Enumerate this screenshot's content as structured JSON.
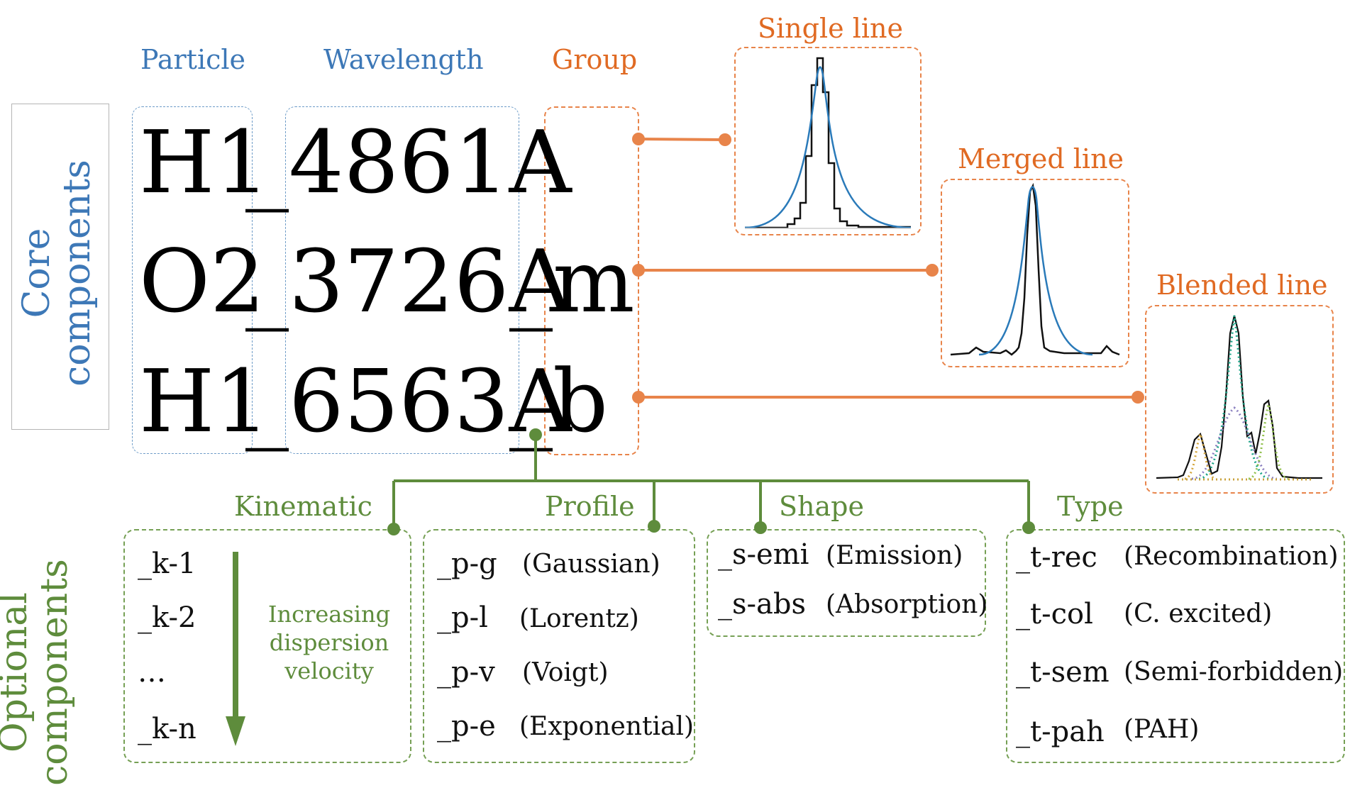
{
  "core": {
    "side_label_line1": "Core",
    "side_label_line2": "components",
    "headers": {
      "particle": "Particle",
      "wavelength": "Wavelength",
      "group": "Group"
    },
    "rows": [
      {
        "particle": "H1",
        "wavelength": "_4861A",
        "group": ""
      },
      {
        "particle": "O2",
        "wavelength": "_3726A",
        "group": "_m"
      },
      {
        "particle": "H1",
        "wavelength": "_6563A",
        "group": "_b"
      }
    ]
  },
  "line_panels": {
    "single": "Single line",
    "merged": "Merged line",
    "blended": "Blended line"
  },
  "optional": {
    "side_label_line1": "Optional",
    "side_label_line2": "components",
    "kinematic": {
      "title": "Kinematic",
      "items": [
        "_k-1",
        "_k-2",
        "…",
        "_k-n"
      ],
      "note_line1": "Increasing",
      "note_line2": "dispersion",
      "note_line3": "velocity"
    },
    "profile": {
      "title": "Profile",
      "items": [
        {
          "code": "_p-g",
          "desc": "(Gaussian)"
        },
        {
          "code": "_p-l",
          "desc": "(Lorentz)"
        },
        {
          "code": "_p-v",
          "desc": "(Voigt)"
        },
        {
          "code": "_p-e",
          "desc": "(Exponential)"
        }
      ]
    },
    "shape": {
      "title": "Shape",
      "items": [
        {
          "code": "_s-emi",
          "desc": "(Emission)"
        },
        {
          "code": "_s-abs",
          "desc": "(Absorption)"
        }
      ]
    },
    "type": {
      "title": "Type",
      "items": [
        {
          "code": "_t-rec",
          "desc": "(Recombination)"
        },
        {
          "code": "_t-col",
          "desc": "(C. excited)"
        },
        {
          "code": "_t-sem",
          "desc": "(Semi-forbidden)"
        },
        {
          "code": "_t-pah",
          "desc": "(PAH)"
        }
      ]
    }
  },
  "colors": {
    "blue": "#3d78b7",
    "orange": "#e8844a",
    "green": "#5e8c3c"
  }
}
